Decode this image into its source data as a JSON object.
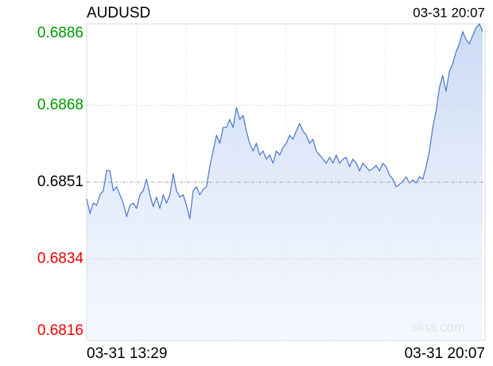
{
  "chart_data": {
    "type": "line",
    "title": "AUDUSD",
    "updated": "03-31 20:07",
    "watermark": "sina.com",
    "categories": [
      "03-31 13:29",
      null,
      null,
      null,
      null,
      null,
      null,
      null,
      null,
      null,
      null,
      null,
      null,
      null,
      null,
      null,
      null,
      null,
      null,
      null,
      null,
      null,
      null,
      null,
      null,
      null,
      null,
      null,
      null,
      null,
      null,
      null,
      null,
      null,
      null,
      null,
      null,
      null,
      null,
      null,
      null,
      null,
      null,
      null,
      null,
      null,
      null,
      null,
      null,
      null,
      null,
      null,
      null,
      null,
      null,
      null,
      null,
      null,
      null,
      null,
      null,
      null,
      null,
      null,
      null,
      null,
      null,
      null,
      null,
      null,
      null,
      null,
      null,
      null,
      null,
      null,
      null,
      null,
      null,
      null,
      null,
      null,
      null,
      null,
      null,
      null,
      null,
      null,
      null,
      null,
      null,
      null,
      null,
      null,
      null,
      null,
      null,
      null,
      null,
      null,
      null,
      null,
      null,
      null,
      null,
      null,
      null,
      null,
      null,
      null,
      null,
      null,
      null,
      null,
      null,
      null,
      null,
      null,
      null,
      "03-31 20:07"
    ],
    "values": [
      0.68473,
      0.68441,
      0.68464,
      0.68459,
      0.68482,
      0.68491,
      0.68536,
      0.68535,
      0.68491,
      0.685,
      0.68482,
      0.68464,
      0.68434,
      0.68459,
      0.68464,
      0.68452,
      0.68482,
      0.68491,
      0.68517,
      0.68482,
      0.68456,
      0.68477,
      0.68452,
      0.68482,
      0.68464,
      0.68482,
      0.68529,
      0.68491,
      0.68477,
      0.68482,
      0.68459,
      0.68429,
      0.68491,
      0.685,
      0.68482,
      0.68494,
      0.685,
      0.68544,
      0.68579,
      0.68614,
      0.68596,
      0.68631,
      0.68631,
      0.68649,
      0.68631,
      0.68675,
      0.68649,
      0.68658,
      0.68623,
      0.68596,
      0.68579,
      0.68596,
      0.6857,
      0.68579,
      0.68561,
      0.6857,
      0.68552,
      0.68579,
      0.6857,
      0.68587,
      0.68596,
      0.68614,
      0.68605,
      0.68623,
      0.6864,
      0.68623,
      0.68614,
      0.68596,
      0.68605,
      0.68579,
      0.6857,
      0.68561,
      0.68552,
      0.68565,
      0.68552,
      0.6857,
      0.68552,
      0.68561,
      0.68565,
      0.68544,
      0.68561,
      0.68552,
      0.68535,
      0.68552,
      0.68544,
      0.68535,
      0.6854,
      0.68547,
      0.68535,
      0.68552,
      0.68544,
      0.68526,
      0.68517,
      0.685,
      0.68505,
      0.68512,
      0.68522,
      0.68508,
      0.68515,
      0.68508,
      0.68522,
      0.68517,
      0.68544,
      0.68579,
      0.68631,
      0.68667,
      0.68719,
      0.68746,
      0.68711,
      0.68755,
      0.68772,
      0.68798,
      0.68816,
      0.68843,
      0.68825,
      0.68816,
      0.68834,
      0.68851,
      0.6886,
      0.68843
    ],
    "color": "#4a76c9",
    "ylim": [
      0.6816,
      0.6886
    ],
    "yticks": [
      0.6816,
      0.6834,
      0.6851,
      0.6868,
      0.6886
    ],
    "ytick_colors": [
      "#ee0000",
      "#ee0000",
      "#000000",
      "#009900",
      "#009900"
    ],
    "grid_styles": [
      "none",
      "dotted",
      "dashdot",
      "dotted",
      "none"
    ],
    "x_grid_divisions": 8
  }
}
